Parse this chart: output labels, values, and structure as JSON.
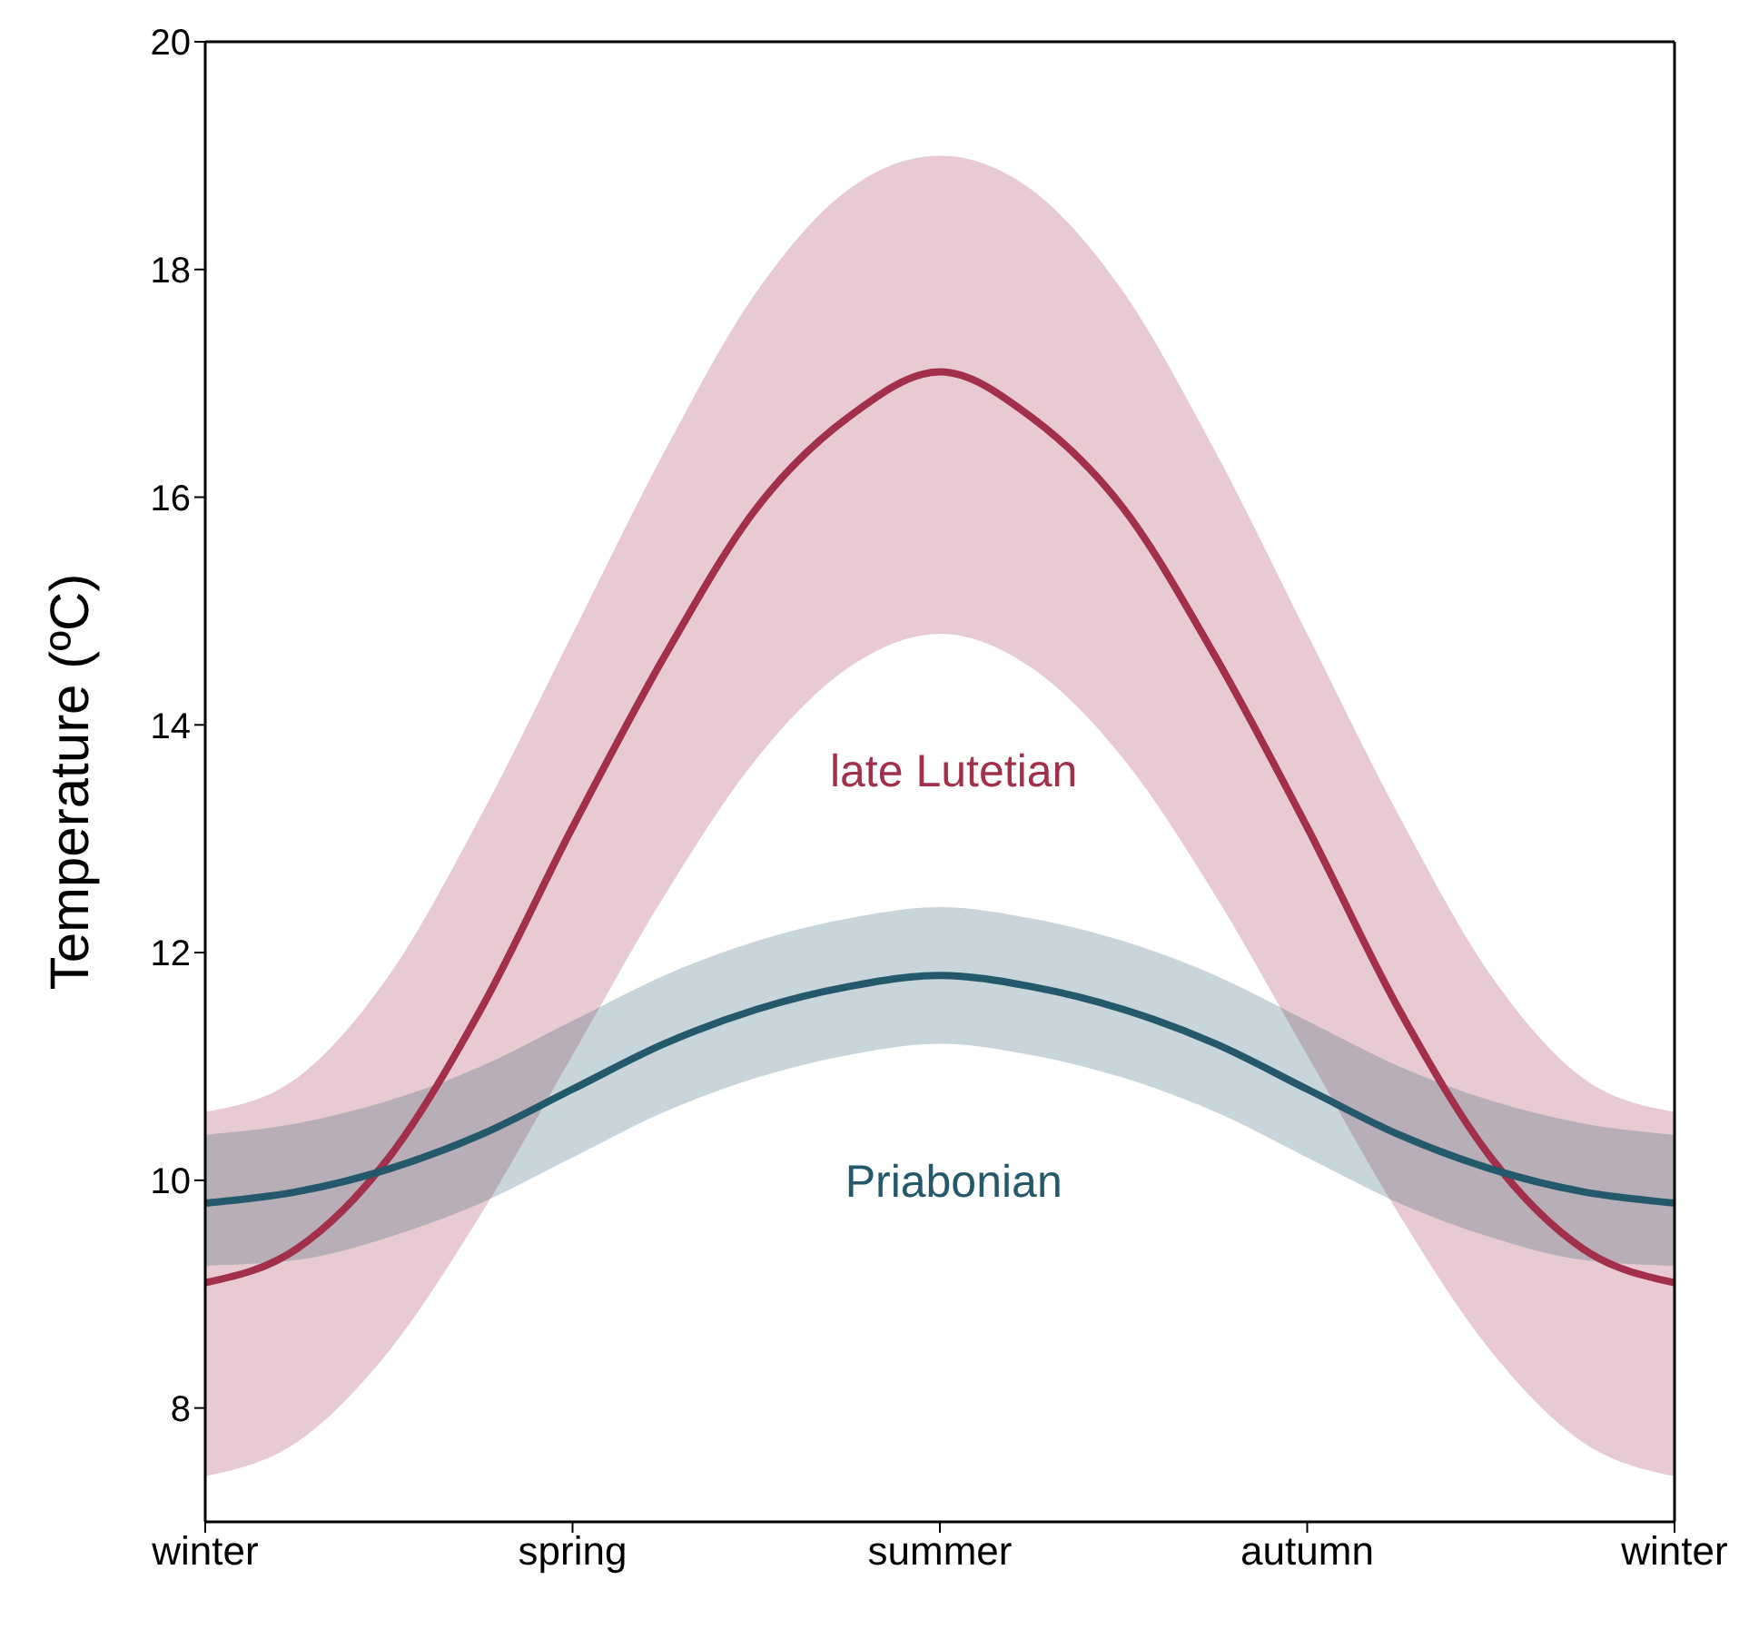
{
  "chart_data": {
    "type": "line",
    "ylabel": "Temperature (ºC)",
    "categories": [
      "winter",
      null,
      null,
      null,
      "spring",
      null,
      null,
      null,
      "summer",
      null,
      null,
      null,
      "autumn",
      null,
      null,
      null,
      "winter"
    ],
    "ylim": [
      7,
      20
    ],
    "yticks": [
      8,
      10,
      12,
      14,
      16,
      18,
      20
    ],
    "marker": "none",
    "line_style": "solid",
    "series": [
      {
        "name": "late Lutetian",
        "color": "#a3304a",
        "values": [
          9.1,
          9.4,
          10.2,
          11.5,
          13.1,
          14.6,
          15.9,
          16.7,
          17.1,
          16.7,
          15.9,
          14.6,
          13.1,
          11.5,
          10.2,
          9.4,
          9.1
        ],
        "lower": [
          7.4,
          7.7,
          8.5,
          9.7,
          11.1,
          12.5,
          13.7,
          14.5,
          14.8,
          14.5,
          13.7,
          12.5,
          11.1,
          9.7,
          8.5,
          7.7,
          7.4
        ],
        "upper": [
          10.6,
          10.9,
          11.8,
          13.2,
          14.8,
          16.4,
          17.8,
          18.7,
          19.0,
          18.7,
          17.8,
          16.4,
          14.8,
          13.2,
          11.8,
          10.9,
          10.6
        ]
      },
      {
        "name": "Priabonian",
        "color": "#24586b",
        "values": [
          9.8,
          9.9,
          10.1,
          10.4,
          10.8,
          11.2,
          11.5,
          11.7,
          11.8,
          11.7,
          11.5,
          11.2,
          10.8,
          10.4,
          10.1,
          9.9,
          9.8
        ],
        "lower": [
          9.25,
          9.3,
          9.5,
          9.8,
          10.2,
          10.6,
          10.9,
          11.1,
          11.2,
          11.1,
          10.9,
          10.6,
          10.2,
          9.8,
          9.5,
          9.3,
          9.25
        ],
        "upper": [
          10.4,
          10.5,
          10.7,
          11.0,
          11.4,
          11.8,
          12.1,
          12.3,
          12.4,
          12.3,
          12.1,
          11.8,
          11.4,
          11.0,
          10.7,
          10.5,
          10.4
        ]
      }
    ]
  }
}
